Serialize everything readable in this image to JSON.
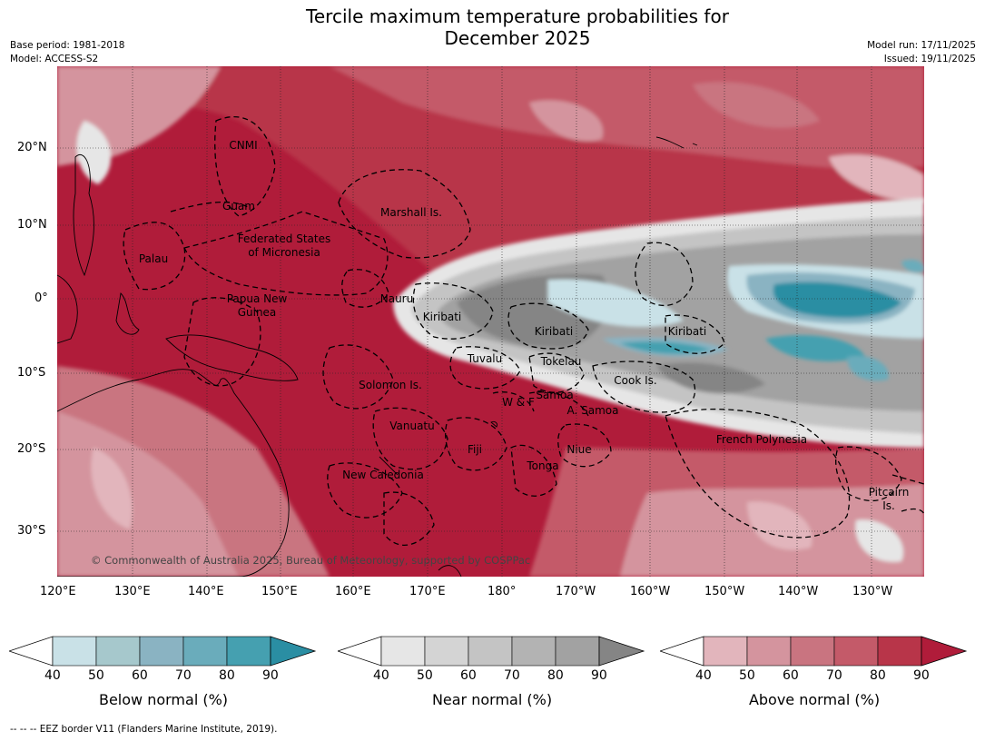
{
  "title_line1": "Tercile maximum temperature probabilities for",
  "title_line2": "December 2025",
  "base_period": "Base period: 1981-2018",
  "model": "Model: ACCESS-S2",
  "model_run": "Model run: 17/11/2025",
  "issued": "Issued: 19/11/2025",
  "lat_labels": [
    "20°N",
    "10°N",
    "0°",
    "10°S",
    "20°S",
    "30°S"
  ],
  "lon_labels": [
    "120°E",
    "130°E",
    "140°E",
    "150°E",
    "160°E",
    "170°E",
    "180°",
    "170°W",
    "160°W",
    "150°W",
    "140°W",
    "130°W"
  ],
  "regions": [
    "CNMI",
    "Guam",
    "Marshall Is.",
    "Federated States",
    "of Micronesia",
    "Palau",
    "Papua New",
    "Guinea",
    "Nauru",
    "Kiribati",
    "Kiribati",
    "Kiribati",
    "Tuvalu",
    "Tokelau",
    "Solomon Is.",
    "Samoa",
    "W & F",
    "A. Samoa",
    "Cook Is.",
    "Vanuatu",
    "Fiji",
    "Niue",
    "Tonga",
    "French Polynesia",
    "New Caledonia",
    "Pitcairn",
    "Is."
  ],
  "copyright": "© Commonwealth of Australia 2025, Bureau of Meteorology, supported by COSPPac",
  "colorbars": [
    {
      "label": "Below normal (%)",
      "ticks": [
        "40",
        "50",
        "60",
        "70",
        "80",
        "90"
      ],
      "colors": [
        "#ffffff",
        "#c9e1e7",
        "#a6c8cc",
        "#8ab3c2",
        "#6aacbb",
        "#45a0b0",
        "#2a8ea3"
      ]
    },
    {
      "label": "Near normal (%)",
      "ticks": [
        "40",
        "50",
        "60",
        "70",
        "80",
        "90"
      ],
      "colors": [
        "#ffffff",
        "#e6e6e6",
        "#d4d4d4",
        "#c4c4c4",
        "#b3b3b3",
        "#a2a2a2",
        "#858585"
      ]
    },
    {
      "label": "Above normal (%)",
      "ticks": [
        "40",
        "50",
        "60",
        "70",
        "80",
        "90"
      ],
      "colors": [
        "#ffffff",
        "#e2b5bc",
        "#d4949e",
        "#c97480",
        "#c45a69",
        "#b83549",
        "#b01c3a"
      ]
    }
  ],
  "footnote": "--  --  -- EEZ border V11 (Flanders Marine Institute, 2019)."
}
